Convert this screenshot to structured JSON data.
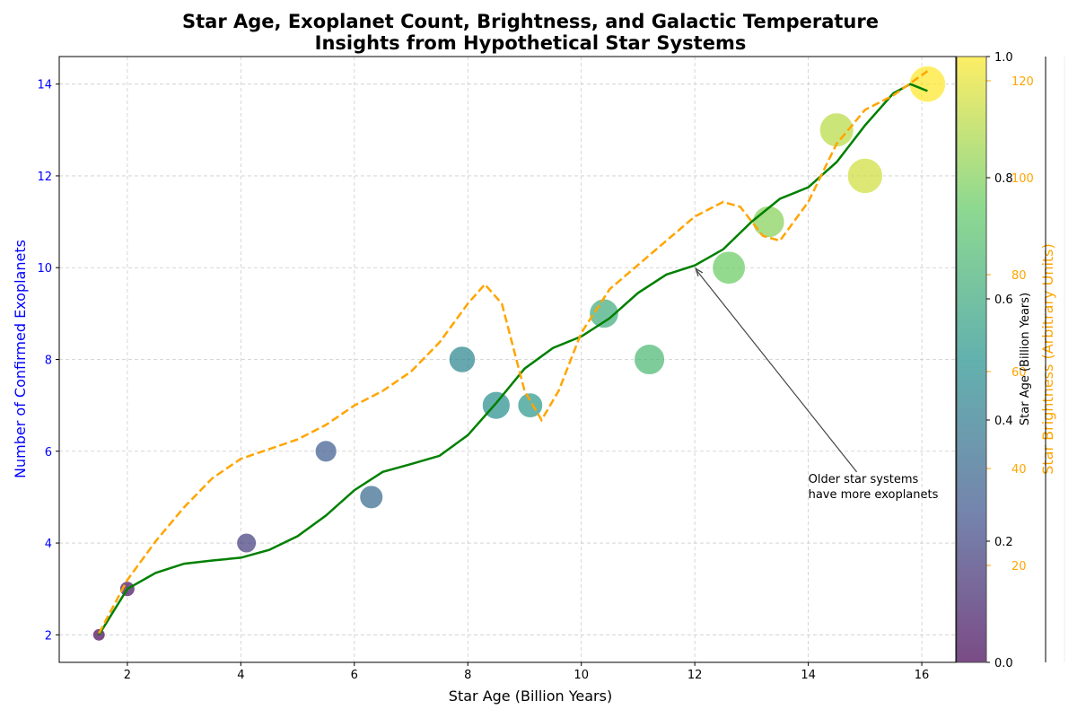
{
  "chart_data": {
    "type": "scatter",
    "title": "Star Age, Exoplanet Count, Brightness, and Galactic Temperature\nInsights from Hypothetical Star Systems",
    "xlabel": "Star Age (Billion Years)",
    "ylabel": "Number of Confirmed Exoplanets",
    "y2label": "Star Brightness (Arbitrary Units)",
    "colorbar_label": "Star Age (Billion Years)",
    "xlim": [
      0.8,
      16.6
    ],
    "ylim": [
      1.4,
      14.6
    ],
    "y2lim": [
      0,
      125
    ],
    "colorbar_lim": [
      0.0,
      1.0
    ],
    "x_ticks": [
      2,
      4,
      6,
      8,
      10,
      12,
      14,
      16
    ],
    "y_ticks": [
      2,
      4,
      6,
      8,
      10,
      12,
      14
    ],
    "y2_ticks": [
      20,
      40,
      60,
      80,
      100,
      120
    ],
    "colorbar_ticks": [
      0.0,
      0.2,
      0.4,
      0.6,
      0.8,
      1.0
    ],
    "grid": true,
    "colormap": "viridis",
    "series": [
      {
        "kind": "scatter",
        "x": [
          1.5,
          2.0,
          4.1,
          5.5,
          6.3,
          7.9,
          8.5,
          9.1,
          10.4,
          11.2,
          12.6,
          13.3,
          14.5,
          15.0,
          16.1
        ],
        "y": [
          2,
          3,
          4,
          6,
          5,
          8,
          7,
          7,
          9,
          8,
          10,
          11,
          13,
          12,
          14
        ],
        "size": [
          10,
          15,
          25,
          30,
          35,
          45,
          50,
          40,
          55,
          60,
          70,
          65,
          75,
          80,
          85
        ]
      },
      {
        "kind": "line",
        "style": "solid",
        "color": "#008000",
        "x": [
          1.5,
          2.0,
          2.5,
          3.0,
          3.5,
          4.0,
          4.5,
          5.0,
          5.5,
          6.0,
          6.5,
          7.0,
          7.5,
          8.0,
          8.5,
          9.0,
          9.5,
          10.0,
          10.5,
          11.0,
          11.5,
          12.0,
          12.5,
          13.0,
          13.5,
          14.0,
          14.5,
          15.0,
          15.5,
          15.8,
          16.1
        ],
        "y": [
          2.0,
          3.0,
          3.35,
          3.55,
          3.62,
          3.68,
          3.85,
          4.15,
          4.6,
          5.15,
          5.55,
          5.72,
          5.9,
          6.35,
          7.05,
          7.8,
          8.25,
          8.5,
          8.9,
          9.45,
          9.85,
          10.05,
          10.4,
          11.0,
          11.5,
          11.75,
          12.3,
          13.1,
          13.8,
          14.0,
          13.85
        ]
      },
      {
        "kind": "line",
        "style": "dashed",
        "color": "#ffa500",
        "axis": "right",
        "x": [
          1.5,
          2.0,
          2.5,
          3.0,
          3.5,
          4.0,
          4.5,
          5.0,
          5.5,
          6.0,
          6.5,
          7.0,
          7.5,
          8.0,
          8.3,
          8.6,
          9.0,
          9.3,
          9.6,
          10.0,
          10.5,
          11.0,
          11.5,
          12.0,
          12.5,
          12.8,
          13.2,
          13.5,
          14.0,
          14.5,
          15.0,
          15.5,
          16.1
        ],
        "y": [
          6,
          17,
          25,
          32,
          38,
          42,
          44,
          46,
          49,
          53,
          56,
          60,
          66,
          74,
          78,
          74,
          56,
          50,
          56,
          68,
          77,
          82,
          87,
          92,
          95,
          94,
          88,
          87,
          95,
          107,
          114,
          117,
          122
        ]
      }
    ],
    "annotation": {
      "text": "Older star systems\nhave more exoplanets",
      "xy": [
        12,
        10
      ],
      "xytext": [
        14,
        5
      ]
    }
  }
}
